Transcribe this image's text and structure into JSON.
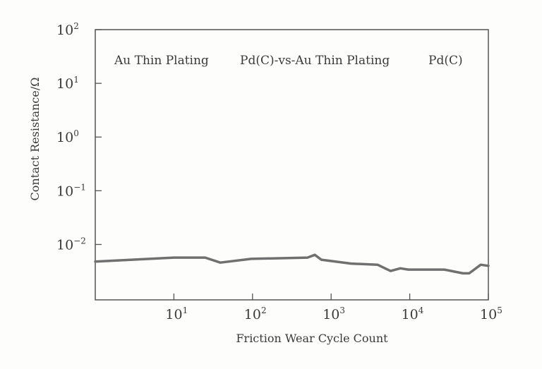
{
  "chart_data": {
    "type": "line",
    "title": "",
    "xlabel": "Friction Wear Cycle Count",
    "ylabel": "Contact Resistance/Ω",
    "xscale": "log",
    "yscale": "log",
    "xlim": [
      1,
      100000
    ],
    "ylim": [
      0.00093,
      100
    ],
    "grid": false,
    "x_ticks": [
      {
        "base": "10",
        "exp": "1",
        "value": 10
      },
      {
        "base": "10",
        "exp": "2",
        "value": 100
      },
      {
        "base": "10",
        "exp": "3",
        "value": 1000
      },
      {
        "base": "10",
        "exp": "4",
        "value": 10000
      },
      {
        "base": "10",
        "exp": "5",
        "value": 100000
      }
    ],
    "y_ticks": [
      {
        "base": "10",
        "exp": "2",
        "value": 100
      },
      {
        "base": "10",
        "exp": "1",
        "value": 10
      },
      {
        "base": "10",
        "exp": "0",
        "value": 1
      },
      {
        "base": "10",
        "exp": "−1",
        "value": 0.1
      },
      {
        "base": "10",
        "exp": "−2",
        "value": 0.01
      }
    ],
    "annotations": [
      "Au Thin Plating",
      "Pd(C)-vs-Au Thin Plating",
      "Pd(C)"
    ],
    "series": [
      {
        "color": "#707070",
        "x": [
          1,
          10,
          25,
          39,
          96,
          500,
          620,
          750,
          1800,
          3900,
          5700,
          7600,
          9600,
          27500,
          47500,
          57000,
          80000,
          100000
        ],
        "y": [
          0.0048,
          0.0057,
          0.0057,
          0.0046,
          0.0054,
          0.0057,
          0.0064,
          0.0052,
          0.0044,
          0.0042,
          0.0032,
          0.0036,
          0.0034,
          0.0034,
          0.0029,
          0.0029,
          0.0042,
          0.004
        ]
      }
    ]
  }
}
